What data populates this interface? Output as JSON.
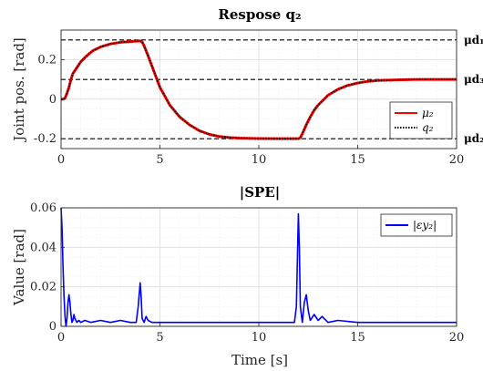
{
  "chart_data": [
    {
      "type": "line",
      "title": "Respose q₂",
      "xlabel": "",
      "ylabel": "Joint pos. [rad]",
      "xlim": [
        0,
        20
      ],
      "ylim": [
        -0.25,
        0.35
      ],
      "xticks": [
        "0",
        "5",
        "10",
        "15",
        "20"
      ],
      "yticks": [
        "-0.2",
        "0",
        "0.2"
      ],
      "grid": true,
      "legend": {
        "placement": "right",
        "entries": [
          "μ₂",
          "q₂"
        ]
      },
      "reference_lines": [
        {
          "label": "μd₁",
          "y": 0.3
        },
        {
          "label": "μd₃",
          "y": 0.1
        },
        {
          "label": "μd₂",
          "y": -0.2
        }
      ],
      "series": [
        {
          "name": "μ₂",
          "color": "#ff0000",
          "x": [
            0,
            0.1,
            0.2,
            0.3,
            0.4,
            0.5,
            0.6,
            0.8,
            1.0,
            1.3,
            1.6,
            2.0,
            2.5,
            3.0,
            3.5,
            3.8,
            4.0,
            4.1,
            4.2,
            4.4,
            4.7,
            5.0,
            5.5,
            6.0,
            6.5,
            7.0,
            7.5,
            8.0,
            8.5,
            9.0,
            10.0,
            11.0,
            11.9,
            12.0,
            12.1,
            12.2,
            12.4,
            12.6,
            12.8,
            13.0,
            13.5,
            14.0,
            14.5,
            15.0,
            15.5,
            16.0,
            17.0,
            18.0,
            20.0
          ],
          "values": [
            0.0,
            0.0,
            0.005,
            0.03,
            0.06,
            0.1,
            0.13,
            0.16,
            0.19,
            0.22,
            0.245,
            0.265,
            0.28,
            0.288,
            0.292,
            0.294,
            0.295,
            0.29,
            0.27,
            0.22,
            0.14,
            0.06,
            -0.03,
            -0.09,
            -0.13,
            -0.16,
            -0.178,
            -0.189,
            -0.194,
            -0.197,
            -0.199,
            -0.2,
            -0.2,
            -0.2,
            -0.195,
            -0.175,
            -0.13,
            -0.09,
            -0.055,
            -0.03,
            0.02,
            0.05,
            0.07,
            0.082,
            0.09,
            0.095,
            0.098,
            0.1,
            0.1
          ]
        },
        {
          "name": "q₂",
          "color": "#000000",
          "x": [
            0,
            0.1,
            0.2,
            0.3,
            0.4,
            0.5,
            0.6,
            0.8,
            1.0,
            1.3,
            1.6,
            2.0,
            2.5,
            3.0,
            3.5,
            3.8,
            4.0,
            4.1,
            4.2,
            4.4,
            4.7,
            5.0,
            5.5,
            6.0,
            6.5,
            7.0,
            7.5,
            8.0,
            8.5,
            9.0,
            10.0,
            11.0,
            11.9,
            12.0,
            12.1,
            12.2,
            12.4,
            12.6,
            12.8,
            13.0,
            13.5,
            14.0,
            14.5,
            15.0,
            15.5,
            16.0,
            17.0,
            18.0,
            20.0
          ],
          "values": [
            0.0,
            0.0,
            0.005,
            0.03,
            0.06,
            0.1,
            0.13,
            0.16,
            0.19,
            0.22,
            0.245,
            0.265,
            0.28,
            0.288,
            0.292,
            0.294,
            0.295,
            0.29,
            0.27,
            0.22,
            0.14,
            0.06,
            -0.03,
            -0.09,
            -0.13,
            -0.16,
            -0.178,
            -0.189,
            -0.194,
            -0.197,
            -0.199,
            -0.2,
            -0.2,
            -0.2,
            -0.195,
            -0.175,
            -0.13,
            -0.09,
            -0.055,
            -0.03,
            0.02,
            0.05,
            0.07,
            0.082,
            0.09,
            0.095,
            0.098,
            0.1,
            0.1
          ]
        }
      ]
    },
    {
      "type": "line",
      "title": "|SPE|",
      "xlabel": "Time [s]",
      "ylabel": "Value [rad]",
      "xlim": [
        0,
        20
      ],
      "ylim": [
        0,
        0.06
      ],
      "xticks": [
        "0",
        "5",
        "10",
        "15",
        "20"
      ],
      "yticks": [
        "0",
        "0.02",
        "0.04",
        "0.06"
      ],
      "grid": true,
      "legend": {
        "placement": "top-right",
        "entries": [
          "|εy₂|"
        ]
      },
      "series": [
        {
          "name": "|εy₂|",
          "color": "#0000ff",
          "x": [
            0,
            0.05,
            0.1,
            0.15,
            0.2,
            0.25,
            0.3,
            0.35,
            0.4,
            0.45,
            0.5,
            0.55,
            0.6,
            0.65,
            0.7,
            0.8,
            0.9,
            1.0,
            1.2,
            1.5,
            2.0,
            2.5,
            3.0,
            3.5,
            3.8,
            3.9,
            4.0,
            4.05,
            4.1,
            4.2,
            4.3,
            4.4,
            4.6,
            5.0,
            6.0,
            7.0,
            8.0,
            9.0,
            10.0,
            11.0,
            11.8,
            11.9,
            12.0,
            12.05,
            12.1,
            12.2,
            12.3,
            12.4,
            12.5,
            12.6,
            12.8,
            13.0,
            13.2,
            13.5,
            14.0,
            15.0,
            16.0,
            17.0,
            18.0,
            19.0,
            20.0
          ],
          "values": [
            0.06,
            0.05,
            0.03,
            0.015,
            0.005,
            0.0,
            0.004,
            0.012,
            0.016,
            0.012,
            0.006,
            0.002,
            0.003,
            0.006,
            0.004,
            0.002,
            0.003,
            0.002,
            0.003,
            0.002,
            0.003,
            0.002,
            0.003,
            0.002,
            0.002,
            0.01,
            0.022,
            0.015,
            0.004,
            0.002,
            0.005,
            0.003,
            0.002,
            0.002,
            0.002,
            0.002,
            0.002,
            0.002,
            0.002,
            0.002,
            0.002,
            0.01,
            0.057,
            0.04,
            0.01,
            0.002,
            0.012,
            0.016,
            0.008,
            0.003,
            0.006,
            0.003,
            0.005,
            0.002,
            0.003,
            0.002,
            0.002,
            0.002,
            0.002,
            0.002,
            0.002
          ]
        }
      ]
    }
  ]
}
